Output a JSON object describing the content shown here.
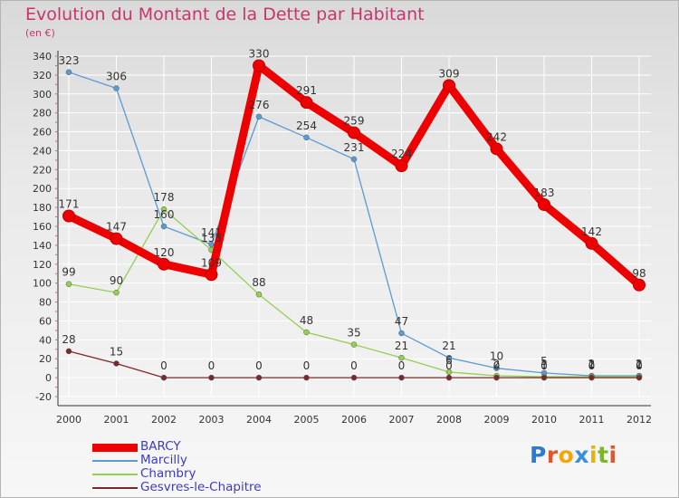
{
  "title": "Evolution du Montant de la Dette par Habitant",
  "subtitle": "(en €)",
  "colors": {
    "title": "#c8356e",
    "axis_text": "#333333",
    "legend_text": "#3b3bc4",
    "grid": "#ffffff"
  },
  "logo": {
    "text": "Proxiti",
    "letter_colors": [
      "#2b7bd2",
      "#e0572a",
      "#f2a60a",
      "#3a8fd8",
      "#e8b00f",
      "#7ab52a",
      "#e0572a"
    ]
  },
  "chart_data": {
    "type": "line",
    "title": "Evolution du Montant de la Dette par Habitant",
    "subtitle": "(en €)",
    "x": [
      "2000",
      "2001",
      "2002",
      "2003",
      "2004",
      "2005",
      "2006",
      "2007",
      "2008",
      "2009",
      "2010",
      "2011",
      "2012"
    ],
    "ylim": [
      -20,
      340
    ],
    "yticks": [
      -20,
      0,
      20,
      40,
      60,
      80,
      100,
      120,
      140,
      160,
      180,
      200,
      220,
      240,
      260,
      280,
      300,
      320,
      340
    ],
    "grid": true,
    "legend_position": "bottom-left",
    "series": [
      {
        "name": "BARCY",
        "color": "#ee0000",
        "bold": true,
        "values": [
          171,
          147,
          120,
          109,
          330,
          291,
          259,
          224,
          309,
          242,
          183,
          142,
          98
        ],
        "labels": [
          "171",
          "147",
          "120",
          "109",
          "330",
          "291",
          "259",
          "224",
          "309",
          "242",
          "183",
          "142",
          "98"
        ]
      },
      {
        "name": "Marcilly",
        "color": "#5b9bd5",
        "bold": false,
        "values": [
          323,
          306,
          160,
          141,
          276,
          254,
          231,
          47,
          21,
          10,
          5,
          2,
          2
        ],
        "labels": [
          "323",
          "306",
          "160",
          "141",
          "276",
          "254",
          "231",
          "47",
          "21",
          "10",
          "5",
          "2",
          "2"
        ]
      },
      {
        "name": "Chambry",
        "color": "#92d050",
        "bold": false,
        "values": [
          99,
          90,
          178,
          135,
          88,
          48,
          35,
          21,
          6,
          2,
          1,
          1,
          1
        ],
        "labels": [
          "99",
          "90",
          "178",
          "135",
          "88",
          "48",
          "35",
          "21",
          "6",
          "2",
          "1",
          "1",
          "1"
        ]
      },
      {
        "name": "Gesvres-le-Chapitre",
        "color": "#7b2a2a",
        "bold": false,
        "values": [
          28,
          15,
          0,
          0,
          0,
          0,
          0,
          0,
          0,
          0,
          0,
          0,
          0
        ],
        "labels": [
          "28",
          "15",
          "0",
          "0",
          "0",
          "0",
          "0",
          "0",
          "0",
          "0",
          "0",
          "0",
          "0"
        ]
      }
    ]
  }
}
